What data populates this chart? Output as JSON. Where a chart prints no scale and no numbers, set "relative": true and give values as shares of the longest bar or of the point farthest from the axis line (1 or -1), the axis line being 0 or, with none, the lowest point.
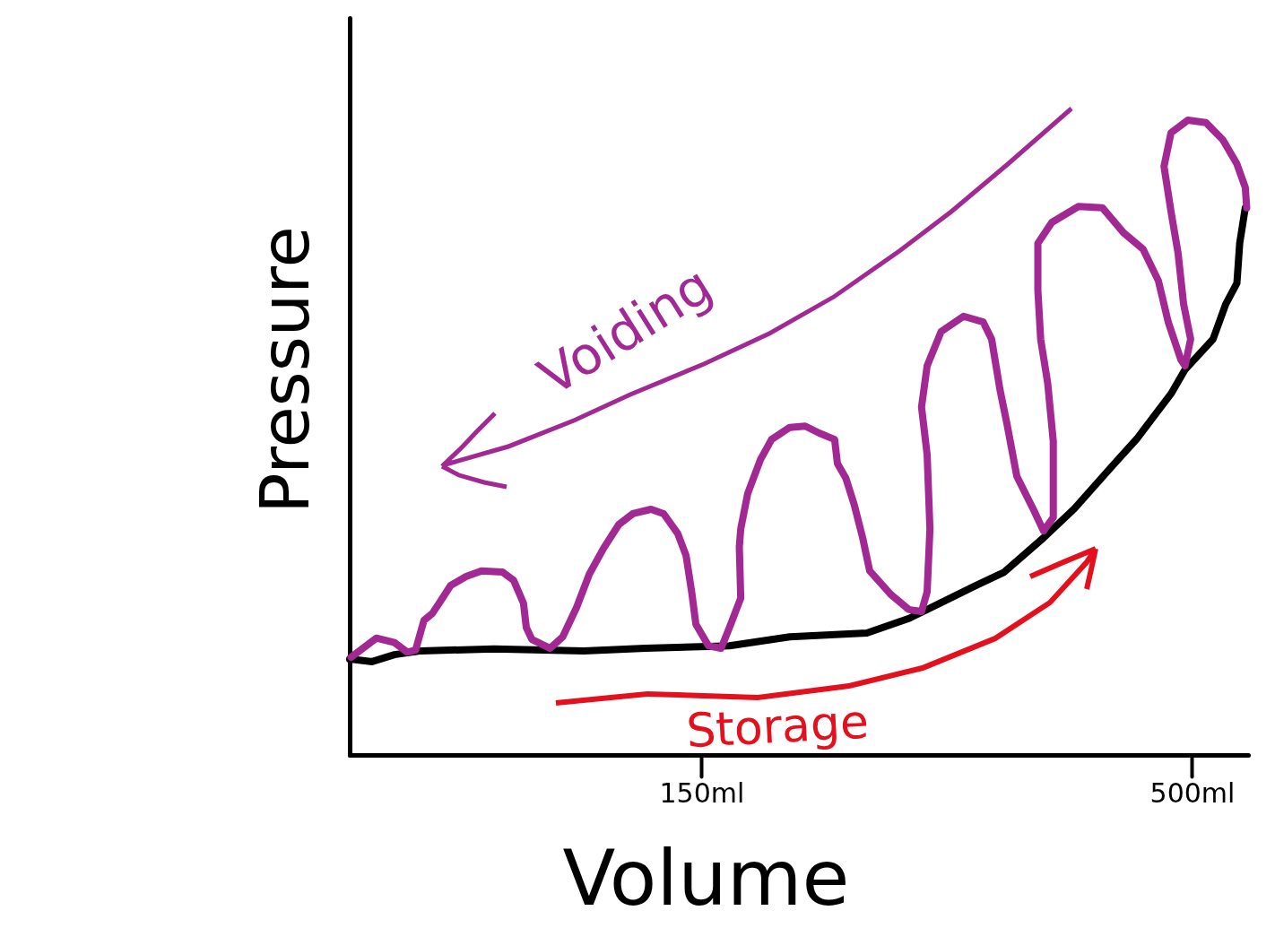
{
  "chart_data": {
    "type": "line",
    "xlabel": "Volume",
    "ylabel": "Pressure",
    "relative": true,
    "xlim": [
      -101,
      540
    ],
    "xticks": [
      {
        "value": 150,
        "label": "150ml"
      },
      {
        "value": 500,
        "label": "500ml"
      }
    ],
    "annotations": [
      "Voiding",
      "Storage"
    ],
    "series": [
      {
        "color": "#000000",
        "x": [
          -101,
          -85,
          -69,
          -50,
          2,
          66,
          110,
          155,
          170,
          213,
          268,
          298,
          321,
          345,
          366,
          394,
          416,
          443,
          461,
          485,
          495,
          515,
          524,
          532,
          534,
          538
        ],
        "values": [
          0.151,
          0.147,
          0.158,
          0.164,
          0.167,
          0.164,
          0.168,
          0.171,
          0.172,
          0.186,
          0.192,
          0.215,
          0.24,
          0.266,
          0.288,
          0.342,
          0.388,
          0.455,
          0.499,
          0.569,
          0.607,
          0.655,
          0.71,
          0.743,
          0.806,
          0.862
        ]
      },
      {
        "color": "#a22993",
        "x": [
          -100,
          -82,
          -69,
          -60,
          -54,
          -48,
          -42,
          -36,
          -29,
          -18,
          -7,
          8,
          16,
          23,
          25,
          29,
          42,
          51,
          61,
          70,
          80,
          91,
          101,
          114,
          123,
          133,
          139,
          143,
          146,
          155,
          164,
          170,
          178,
          177,
          178,
          183,
          192,
          200,
          213,
          224,
          234,
          245,
          247,
          253,
          259,
          265,
          270,
          285,
          298,
          307,
          311,
          313,
          311,
          307,
          311,
          321,
          337,
          351,
          357,
          363,
          368,
          375,
          387,
          394,
          401,
          401,
          397,
          392,
          390,
          390,
          400,
          419,
          436,
          451,
          465,
          476,
          483,
          492,
          495,
          499,
          494,
          490,
          485,
          480,
          485,
          497,
          510,
          522,
          532,
          538,
          539
        ],
        "values": [
          0.154,
          0.184,
          0.177,
          0.162,
          0.165,
          0.212,
          0.223,
          0.243,
          0.267,
          0.281,
          0.29,
          0.288,
          0.275,
          0.239,
          0.201,
          0.182,
          0.168,
          0.186,
          0.233,
          0.285,
          0.325,
          0.363,
          0.38,
          0.387,
          0.38,
          0.349,
          0.314,
          0.257,
          0.206,
          0.172,
          0.168,
          0.201,
          0.247,
          0.328,
          0.356,
          0.412,
          0.465,
          0.497,
          0.516,
          0.518,
          0.507,
          0.497,
          0.459,
          0.436,
          0.394,
          0.342,
          0.29,
          0.253,
          0.229,
          0.226,
          0.257,
          0.356,
          0.473,
          0.548,
          0.613,
          0.667,
          0.691,
          0.682,
          0.655,
          0.575,
          0.521,
          0.439,
          0.386,
          0.353,
          0.374,
          0.494,
          0.586,
          0.655,
          0.732,
          0.806,
          0.839,
          0.864,
          0.862,
          0.823,
          0.797,
          0.747,
          0.682,
          0.623,
          0.613,
          0.655,
          0.71,
          0.791,
          0.856,
          0.927,
          0.98,
          1,
          0.996,
          0.969,
          0.931,
          0.894,
          0.862
        ]
      }
    ]
  }
}
